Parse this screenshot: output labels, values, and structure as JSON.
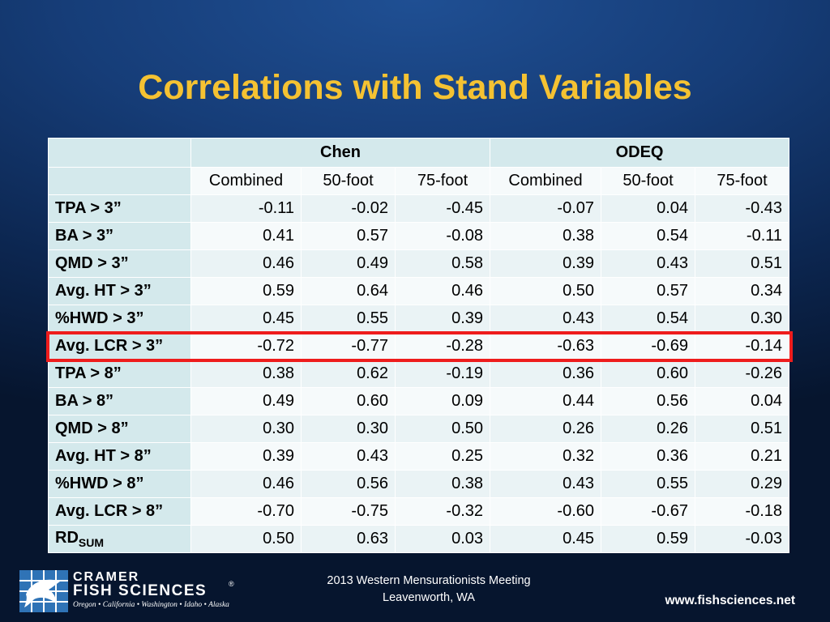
{
  "slide": {
    "title": "Correlations with Stand Variables"
  },
  "table": {
    "group_headers": [
      "Chen",
      "ODEQ"
    ],
    "sub_headers": [
      "Combined",
      "50-foot",
      "75-foot",
      "Combined",
      "50-foot",
      "75-foot"
    ],
    "rows": [
      {
        "label": "TPA > 3”",
        "values": [
          "-0.11",
          "-0.02",
          "-0.45",
          "-0.07",
          "0.04",
          "-0.43"
        ]
      },
      {
        "label": "BA > 3”",
        "values": [
          "0.41",
          "0.57",
          "-0.08",
          "0.38",
          "0.54",
          "-0.11"
        ]
      },
      {
        "label": "QMD > 3”",
        "values": [
          "0.46",
          "0.49",
          "0.58",
          "0.39",
          "0.43",
          "0.51"
        ]
      },
      {
        "label": "Avg. HT > 3”",
        "values": [
          "0.59",
          "0.64",
          "0.46",
          "0.50",
          "0.57",
          "0.34"
        ]
      },
      {
        "label": "%HWD > 3”",
        "values": [
          "0.45",
          "0.55",
          "0.39",
          "0.43",
          "0.54",
          "0.30"
        ]
      },
      {
        "label": "Avg. LCR > 3”",
        "values": [
          "-0.72",
          "-0.77",
          "-0.28",
          "-0.63",
          "-0.69",
          "-0.14"
        ]
      },
      {
        "label": "TPA > 8”",
        "values": [
          "0.38",
          "0.62",
          "-0.19",
          "0.36",
          "0.60",
          "-0.26"
        ]
      },
      {
        "label": "BA > 8”",
        "values": [
          "0.49",
          "0.60",
          "0.09",
          "0.44",
          "0.56",
          "0.04"
        ]
      },
      {
        "label": "QMD > 8”",
        "values": [
          "0.30",
          "0.30",
          "0.50",
          "0.26",
          "0.26",
          "0.51"
        ]
      },
      {
        "label": "Avg. HT > 8”",
        "values": [
          "0.39",
          "0.43",
          "0.25",
          "0.32",
          "0.36",
          "0.21"
        ]
      },
      {
        "label": "%HWD > 8”",
        "values": [
          "0.46",
          "0.56",
          "0.38",
          "0.43",
          "0.55",
          "0.29"
        ]
      },
      {
        "label": "Avg. LCR > 8”",
        "values": [
          "-0.70",
          "-0.75",
          "-0.32",
          "-0.60",
          "-0.67",
          "-0.18"
        ]
      },
      {
        "label": "RD",
        "label_sub": "SUM",
        "values": [
          "0.50",
          "0.63",
          "0.03",
          "0.45",
          "0.59",
          "-0.03"
        ]
      }
    ],
    "highlighted_row_label": "Avg. LCR > 3”",
    "highlight_color": "#ee1c1c"
  },
  "footer": {
    "logo_line1": "CRAMER",
    "logo_line2": "FISH SCIENCES",
    "logo_registered": "®",
    "logo_tagline": "Oregon • California • Washington • Idaho • Alaska",
    "meeting_line1": "2013 Western Mensurationists Meeting",
    "meeting_line2": "Leavenworth, WA",
    "website": "www.fishsciences.net"
  },
  "colors": {
    "title": "#f5c232",
    "header_fill": "#d4e9ec",
    "highlight": "#ee1c1c"
  }
}
